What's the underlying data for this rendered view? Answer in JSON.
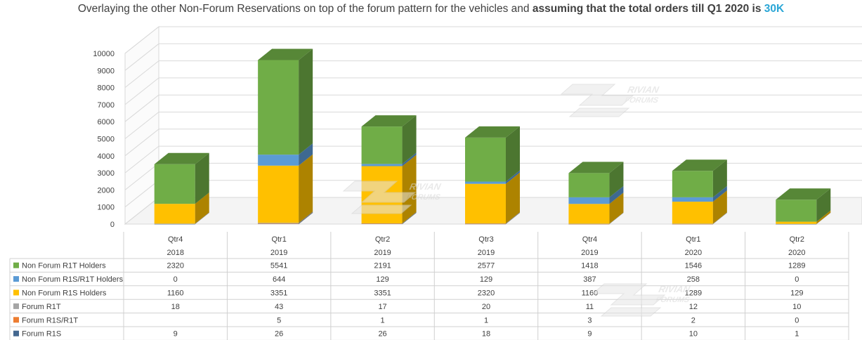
{
  "title": {
    "prefix": "Overlaying the other Non-Forum Reservations on top of the forum pattern for the vehicles and ",
    "bold": "assuming that the total orders till Q1 2020 is ",
    "highlight": "30K"
  },
  "watermark": {
    "text_top": "RIVIAN",
    "text_bottom": "FORUMS"
  },
  "colors": {
    "accent": "#2aa6d6",
    "grid": "#d9d9d9",
    "axis_text": "#404040"
  },
  "chart_data": {
    "type": "bar",
    "stacked": true,
    "three_d": true,
    "title": "Overlaying the other Non-Forum Reservations on top of the forum pattern for the vehicles and assuming that the total orders till Q1 2020 is 30K",
    "categories": [
      [
        "Qtr4",
        "2018"
      ],
      [
        "Qtr1",
        "2019"
      ],
      [
        "Qtr2",
        "2019"
      ],
      [
        "Qtr3",
        "2019"
      ],
      [
        "Qtr4",
        "2019"
      ],
      [
        "Qtr1",
        "2020"
      ],
      [
        "Qtr2",
        "2020"
      ]
    ],
    "ylim": [
      0,
      10000
    ],
    "yticks": [
      0,
      1000,
      2000,
      3000,
      4000,
      5000,
      6000,
      7000,
      8000,
      9000,
      10000
    ],
    "grid": true,
    "legend": "data-table",
    "series": [
      {
        "name": "Forum R1S",
        "color": "#44678f",
        "values": [
          9,
          26,
          26,
          18,
          9,
          10,
          1
        ]
      },
      {
        "name": "Forum R1S/R1T",
        "color": "#ed7d31",
        "values": [
          null,
          5,
          1,
          1,
          3,
          2,
          0
        ]
      },
      {
        "name": "Forum R1T",
        "color": "#a5a5a5",
        "values": [
          18,
          43,
          17,
          20,
          11,
          12,
          10
        ]
      },
      {
        "name": "Non Forum R1S Holders",
        "color": "#ffc000",
        "values": [
          1160,
          3351,
          3351,
          2320,
          1160,
          1289,
          129
        ]
      },
      {
        "name": "Non Forum R1S/R1T Holders",
        "color": "#5b9bd5",
        "values": [
          0,
          644,
          129,
          129,
          387,
          258,
          0
        ]
      },
      {
        "name": "Non Forum R1T Holders",
        "color": "#70ad47",
        "values": [
          2320,
          5541,
          2191,
          2577,
          1418,
          1546,
          1289
        ]
      }
    ],
    "table_row_order": [
      5,
      4,
      3,
      2,
      1,
      0
    ]
  }
}
